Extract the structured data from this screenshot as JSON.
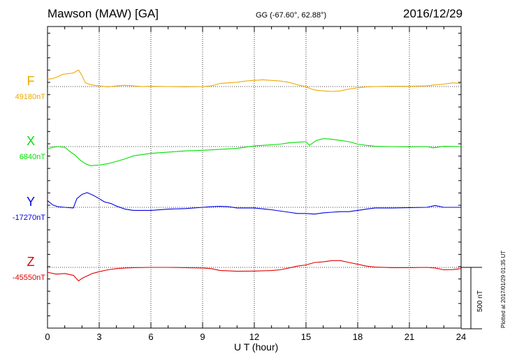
{
  "header": {
    "station": "Mawson (MAW)  [GA]",
    "coords": "GG (-67.60°,  62.88°)",
    "date": "2016/12/29"
  },
  "footer": {
    "plotted": "Plotted at 2017/01/29 01:35 UT"
  },
  "scale_bar": {
    "label": "500 nT",
    "value_nT": 500
  },
  "chart_data": {
    "type": "line",
    "xlabel": "U T (hour)",
    "xlim": [
      0,
      24
    ],
    "xticks": [
      0,
      3,
      6,
      9,
      12,
      15,
      18,
      21,
      24
    ],
    "grid": true,
    "series": [
      {
        "name": "F",
        "baseline_label": "49180nT",
        "baseline_nT": 49180,
        "color": "#f0a800",
        "points": [
          [
            0,
            49240
          ],
          [
            0.3,
            49245
          ],
          [
            0.6,
            49260
          ],
          [
            0.9,
            49280
          ],
          [
            1.2,
            49285
          ],
          [
            1.5,
            49290
          ],
          [
            1.8,
            49315
          ],
          [
            2.0,
            49270
          ],
          [
            2.2,
            49210
          ],
          [
            2.5,
            49195
          ],
          [
            3.0,
            49185
          ],
          [
            3.5,
            49178
          ],
          [
            4.0,
            49185
          ],
          [
            4.5,
            49190
          ],
          [
            5.0,
            49185
          ],
          [
            5.5,
            49180
          ],
          [
            6.0,
            49182
          ],
          [
            7.0,
            49180
          ],
          [
            8.0,
            49178
          ],
          [
            9.0,
            49180
          ],
          [
            9.5,
            49185
          ],
          [
            10.0,
            49205
          ],
          [
            10.5,
            49210
          ],
          [
            11.0,
            49215
          ],
          [
            11.5,
            49225
          ],
          [
            12.0,
            49230
          ],
          [
            12.5,
            49235
          ],
          [
            13.0,
            49230
          ],
          [
            13.5,
            49225
          ],
          [
            14.0,
            49215
          ],
          [
            14.5,
            49195
          ],
          [
            15.0,
            49180
          ],
          [
            15.3,
            49160
          ],
          [
            15.6,
            49150
          ],
          [
            16.0,
            49145
          ],
          [
            16.5,
            49140
          ],
          [
            17.0,
            49145
          ],
          [
            17.5,
            49160
          ],
          [
            18.0,
            49170
          ],
          [
            18.5,
            49178
          ],
          [
            19.0,
            49180
          ],
          [
            20.0,
            49182
          ],
          [
            21.0,
            49182
          ],
          [
            22.0,
            49185
          ],
          [
            22.5,
            49195
          ],
          [
            23.0,
            49200
          ],
          [
            23.5,
            49210
          ],
          [
            24.0,
            49205
          ]
        ]
      },
      {
        "name": "X",
        "baseline_label": "6840nT",
        "baseline_nT": 6840,
        "color": "#00e000",
        "points": [
          [
            0,
            6820
          ],
          [
            0.3,
            6835
          ],
          [
            0.6,
            6840
          ],
          [
            1.0,
            6835
          ],
          [
            1.3,
            6800
          ],
          [
            1.6,
            6770
          ],
          [
            1.9,
            6730
          ],
          [
            2.2,
            6700
          ],
          [
            2.5,
            6685
          ],
          [
            3.0,
            6690
          ],
          [
            3.5,
            6700
          ],
          [
            4.0,
            6720
          ],
          [
            4.5,
            6740
          ],
          [
            5.0,
            6765
          ],
          [
            5.5,
            6775
          ],
          [
            6.0,
            6785
          ],
          [
            7.0,
            6795
          ],
          [
            8.0,
            6805
          ],
          [
            9.0,
            6810
          ],
          [
            10.0,
            6818
          ],
          [
            11.0,
            6825
          ],
          [
            12.0,
            6845
          ],
          [
            12.5,
            6850
          ],
          [
            13.0,
            6855
          ],
          [
            13.5,
            6860
          ],
          [
            14.0,
            6870
          ],
          [
            14.5,
            6875
          ],
          [
            15.0,
            6880
          ],
          [
            15.2,
            6850
          ],
          [
            15.6,
            6890
          ],
          [
            16.0,
            6905
          ],
          [
            16.5,
            6900
          ],
          [
            17.0,
            6890
          ],
          [
            17.5,
            6880
          ],
          [
            18.0,
            6860
          ],
          [
            18.5,
            6850
          ],
          [
            19.0,
            6842
          ],
          [
            20.0,
            6840
          ],
          [
            21.0,
            6838
          ],
          [
            22.0,
            6840
          ],
          [
            22.4,
            6830
          ],
          [
            23.0,
            6842
          ],
          [
            24.0,
            6840
          ]
        ]
      },
      {
        "name": "Y",
        "baseline_label": "-17270nT",
        "baseline_nT": -17270,
        "color": "#0000e0",
        "points": [
          [
            0,
            -17215
          ],
          [
            0.3,
            -17250
          ],
          [
            0.6,
            -17265
          ],
          [
            1.0,
            -17270
          ],
          [
            1.5,
            -17275
          ],
          [
            1.7,
            -17200
          ],
          [
            2.0,
            -17165
          ],
          [
            2.3,
            -17150
          ],
          [
            2.7,
            -17175
          ],
          [
            3.0,
            -17200
          ],
          [
            3.3,
            -17225
          ],
          [
            3.7,
            -17240
          ],
          [
            4.0,
            -17260
          ],
          [
            4.5,
            -17285
          ],
          [
            5.0,
            -17295
          ],
          [
            6.0,
            -17295
          ],
          [
            7.0,
            -17285
          ],
          [
            8.0,
            -17280
          ],
          [
            9.0,
            -17270
          ],
          [
            9.5,
            -17265
          ],
          [
            10.0,
            -17262
          ],
          [
            10.5,
            -17265
          ],
          [
            11.0,
            -17275
          ],
          [
            12.0,
            -17275
          ],
          [
            13.0,
            -17290
          ],
          [
            14.0,
            -17310
          ],
          [
            14.5,
            -17320
          ],
          [
            15.0,
            -17320
          ],
          [
            15.5,
            -17325
          ],
          [
            16.0,
            -17315
          ],
          [
            16.5,
            -17310
          ],
          [
            17.0,
            -17305
          ],
          [
            17.5,
            -17305
          ],
          [
            18.0,
            -17295
          ],
          [
            18.5,
            -17285
          ],
          [
            19.0,
            -17275
          ],
          [
            20.0,
            -17275
          ],
          [
            21.0,
            -17272
          ],
          [
            22.0,
            -17270
          ],
          [
            22.5,
            -17255
          ],
          [
            23.0,
            -17270
          ],
          [
            24.0,
            -17270
          ]
        ]
      },
      {
        "name": "Z",
        "baseline_label": "-45550nT",
        "baseline_nT": -45550,
        "color": "#e00000",
        "points": [
          [
            0,
            -45590
          ],
          [
            0.5,
            -45605
          ],
          [
            1.0,
            -45600
          ],
          [
            1.5,
            -45615
          ],
          [
            1.8,
            -45660
          ],
          [
            2.0,
            -45640
          ],
          [
            2.3,
            -45620
          ],
          [
            2.6,
            -45600
          ],
          [
            3.0,
            -45585
          ],
          [
            3.5,
            -45570
          ],
          [
            4.0,
            -45560
          ],
          [
            4.5,
            -45555
          ],
          [
            5.0,
            -45552
          ],
          [
            6.0,
            -45550
          ],
          [
            7.0,
            -45550
          ],
          [
            8.0,
            -45552
          ],
          [
            9.0,
            -45555
          ],
          [
            9.5,
            -45560
          ],
          [
            10.0,
            -45575
          ],
          [
            11.0,
            -45582
          ],
          [
            12.0,
            -45580
          ],
          [
            12.5,
            -45578
          ],
          [
            13.0,
            -45576
          ],
          [
            13.5,
            -45570
          ],
          [
            14.0,
            -45555
          ],
          [
            14.5,
            -45540
          ],
          [
            15.0,
            -45530
          ],
          [
            15.5,
            -45510
          ],
          [
            16.0,
            -45505
          ],
          [
            16.5,
            -45495
          ],
          [
            17.0,
            -45495
          ],
          [
            17.5,
            -45510
          ],
          [
            18.0,
            -45525
          ],
          [
            18.5,
            -45540
          ],
          [
            19.0,
            -45548
          ],
          [
            20.0,
            -45552
          ],
          [
            21.0,
            -45552
          ],
          [
            22.0,
            -45550
          ],
          [
            22.5,
            -45555
          ],
          [
            23.0,
            -45570
          ],
          [
            23.5,
            -45568
          ],
          [
            24.0,
            -45560
          ]
        ]
      }
    ]
  }
}
